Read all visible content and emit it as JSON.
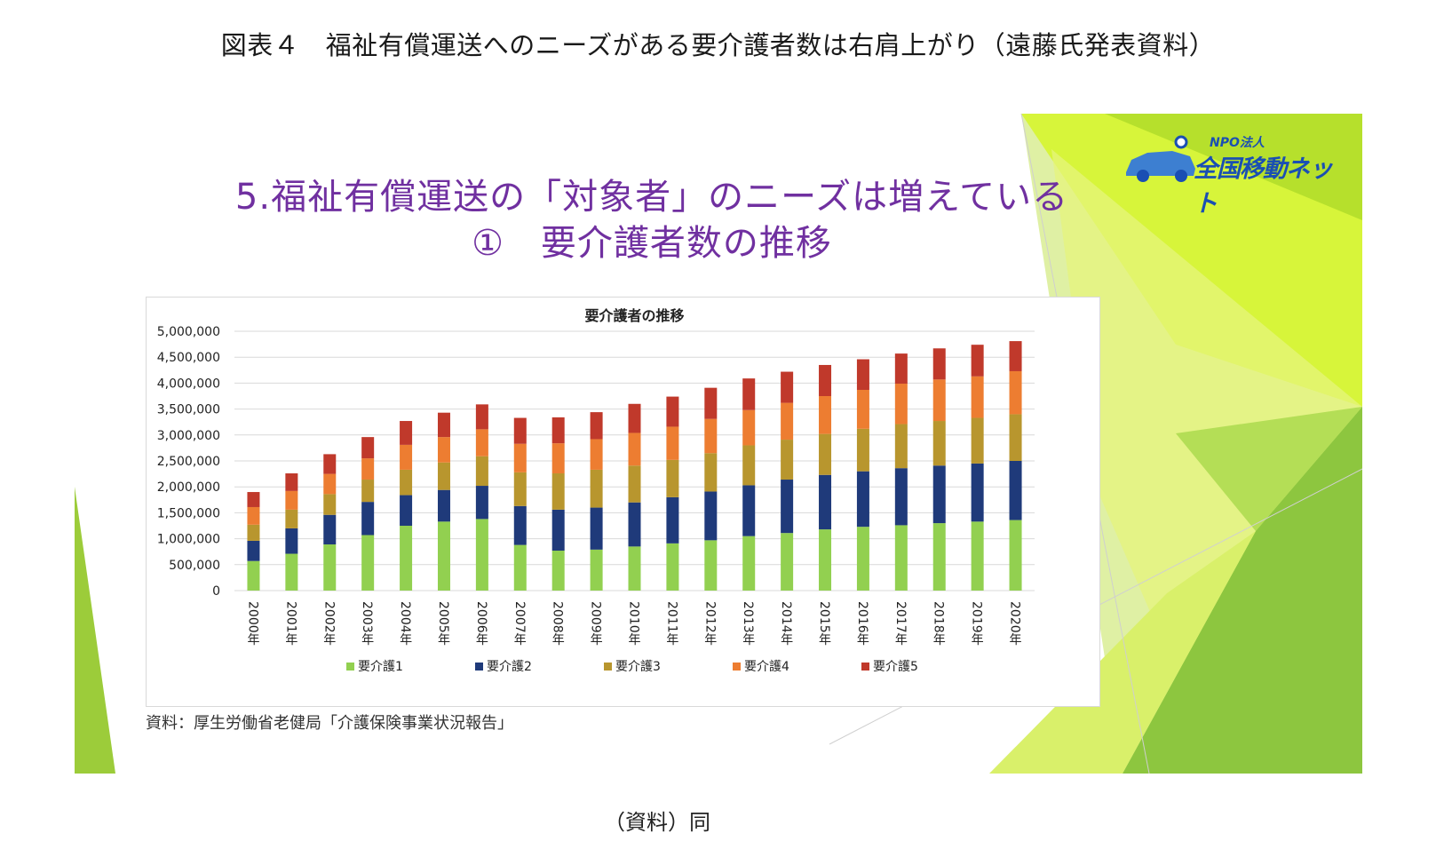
{
  "figure_title": "図表４　福祉有償運送へのニーズがある要介護者数は右肩上がり（遠藤氏発表資料）",
  "slide": {
    "title_line1": "5.福祉有償運送の「対象者」のニーズは増えている",
    "title_line2": "①　要介護者数の推移",
    "logo": {
      "npo": "NPO法人",
      "name": "全国移動ネット"
    },
    "source": "資料：厚生労働省老健局「介護保険事業状況報告」"
  },
  "footer_note": "（資料）同",
  "colors": {
    "care1": "#92d050",
    "care2": "#1f3a7a",
    "care3": "#b8962e",
    "care4": "#ed7d31",
    "care5": "#c0392b",
    "title_purple": "#7030a0",
    "accent_green": "#8dc63f",
    "accent_yellow": "#d7f53a"
  },
  "chart_data": {
    "type": "bar",
    "stacked": true,
    "title": "要介護者の推移",
    "xlabel": "",
    "ylabel": "",
    "ylim": [
      0,
      5000000
    ],
    "yticks": [
      0,
      500000,
      1000000,
      1500000,
      2000000,
      2500000,
      3000000,
      3500000,
      4000000,
      4500000,
      5000000
    ],
    "ytick_labels": [
      "0",
      "500,000",
      "1,000,000",
      "1,500,000",
      "2,000,000",
      "2,500,000",
      "3,000,000",
      "3,500,000",
      "4,000,000",
      "4,500,000",
      "5,000,000"
    ],
    "grid": true,
    "legend_position": "bottom",
    "categories": [
      "2000年",
      "2001年",
      "2002年",
      "2003年",
      "2004年",
      "2005年",
      "2006年",
      "2007年",
      "2008年",
      "2009年",
      "2010年",
      "2011年",
      "2012年",
      "2013年",
      "2014年",
      "2015年",
      "2016年",
      "2017年",
      "2018年",
      "2019年",
      "2020年"
    ],
    "series": [
      {
        "name": "要介護1",
        "values": [
          570000,
          710000,
          890000,
          1070000,
          1250000,
          1330000,
          1380000,
          880000,
          770000,
          790000,
          850000,
          910000,
          970000,
          1050000,
          1110000,
          1180000,
          1230000,
          1260000,
          1300000,
          1330000,
          1360000
        ]
      },
      {
        "name": "要介護2",
        "values": [
          390000,
          490000,
          570000,
          640000,
          590000,
          610000,
          640000,
          750000,
          790000,
          810000,
          850000,
          890000,
          940000,
          980000,
          1030000,
          1050000,
          1070000,
          1100000,
          1110000,
          1120000,
          1140000
        ]
      },
      {
        "name": "要介護3",
        "values": [
          310000,
          360000,
          400000,
          430000,
          490000,
          530000,
          570000,
          650000,
          700000,
          730000,
          710000,
          720000,
          740000,
          770000,
          770000,
          790000,
          820000,
          850000,
          860000,
          880000,
          900000
        ]
      },
      {
        "name": "要介護4",
        "values": [
          340000,
          360000,
          390000,
          410000,
          480000,
          490000,
          520000,
          550000,
          580000,
          590000,
          630000,
          640000,
          660000,
          680000,
          710000,
          730000,
          750000,
          780000,
          800000,
          800000,
          830000
        ]
      },
      {
        "name": "要介護5",
        "values": [
          290000,
          340000,
          380000,
          410000,
          460000,
          470000,
          480000,
          500000,
          500000,
          520000,
          560000,
          580000,
          600000,
          610000,
          600000,
          600000,
          590000,
          580000,
          600000,
          610000,
          580000
        ]
      }
    ]
  }
}
